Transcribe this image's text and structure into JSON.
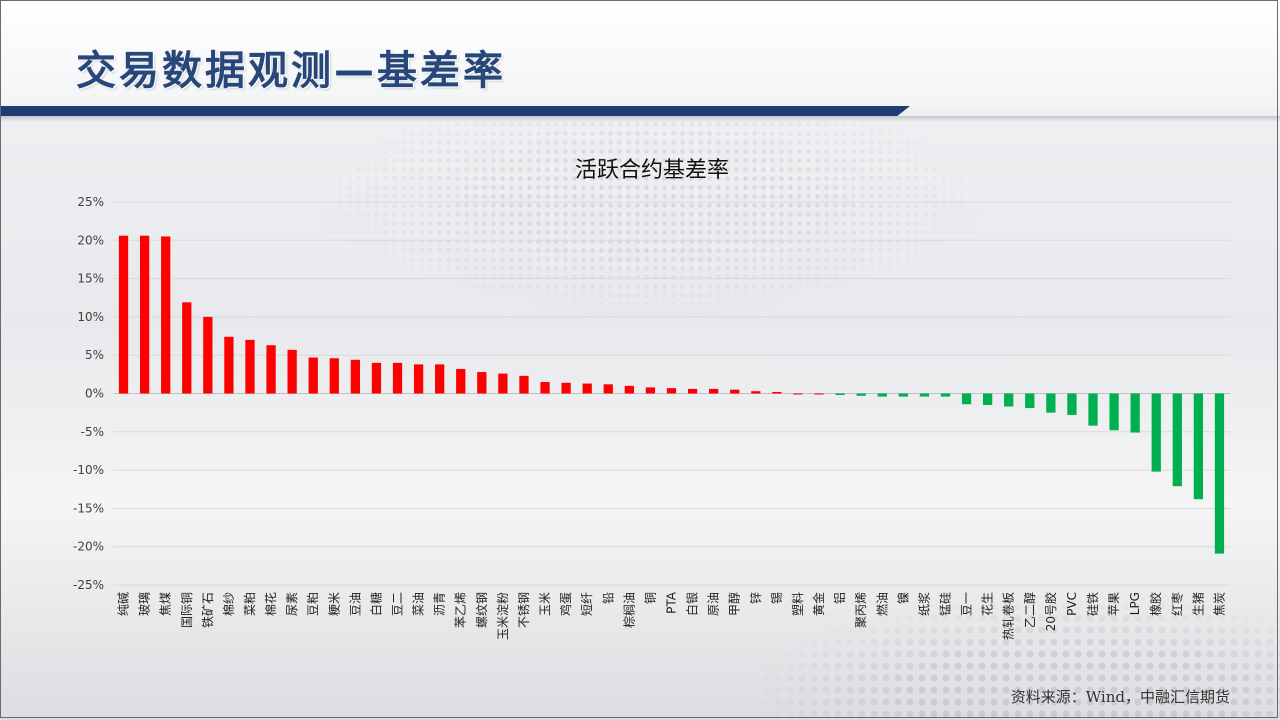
{
  "slide": {
    "title": "交易数据观测—基差率",
    "source": "资料来源：Wind，中融汇信期货"
  },
  "colors": {
    "positive": "#ff0000",
    "negative": "#00b050",
    "title": "#27477a",
    "rule": "#1e3d73"
  },
  "chart_data": {
    "type": "bar",
    "title": "活跃合约基差率",
    "xlabel": "",
    "ylabel": "",
    "ylim": [
      -0.25,
      0.25
    ],
    "yticks": [
      0.25,
      0.2,
      0.15,
      0.1,
      0.05,
      0,
      -0.05,
      -0.1,
      -0.15,
      -0.2,
      -0.25
    ],
    "ytick_labels": [
      "25%",
      "20%",
      "15%",
      "10%",
      "5%",
      "0%",
      "-5%",
      "-10%",
      "-15%",
      "-20%",
      "-25%"
    ],
    "grid": true,
    "legend": "none",
    "categories": [
      "纯碱",
      "玻璃",
      "焦煤",
      "国际铜",
      "铁矿石",
      "棉纱",
      "菜粕",
      "棉花",
      "尿素",
      "豆粕",
      "粳米",
      "豆油",
      "白糖",
      "豆二",
      "菜油",
      "沥青",
      "苯乙烯",
      "螺纹钢",
      "玉米淀粉",
      "不锈钢",
      "玉米",
      "鸡蛋",
      "短纤",
      "铅",
      "棕榈油",
      "铜",
      "PTA",
      "白银",
      "原油",
      "甲醇",
      "锌",
      "锡",
      "塑料",
      "黄金",
      "铝",
      "聚丙烯",
      "燃油",
      "镍",
      "纸浆",
      "锰硅",
      "豆一",
      "花生",
      "热轧卷板",
      "乙二醇",
      "20号胶",
      "PVC",
      "硅铁",
      "苹果",
      "LPG",
      "橡胶",
      "红枣",
      "生猪",
      "焦炭"
    ],
    "values": [
      0.206,
      0.206,
      0.205,
      0.119,
      0.1,
      0.074,
      0.07,
      0.063,
      0.057,
      0.047,
      0.046,
      0.044,
      0.04,
      0.04,
      0.038,
      0.038,
      0.032,
      0.028,
      0.026,
      0.023,
      0.015,
      0.014,
      0.013,
      0.012,
      0.01,
      0.008,
      0.007,
      0.006,
      0.006,
      0.005,
      0.003,
      0.002,
      0.0,
      0.0,
      -0.002,
      -0.003,
      -0.004,
      -0.004,
      -0.004,
      -0.004,
      -0.014,
      -0.015,
      -0.017,
      -0.019,
      -0.025,
      -0.028,
      -0.042,
      -0.048,
      -0.051,
      -0.102,
      -0.121,
      -0.138,
      -0.209
    ]
  }
}
